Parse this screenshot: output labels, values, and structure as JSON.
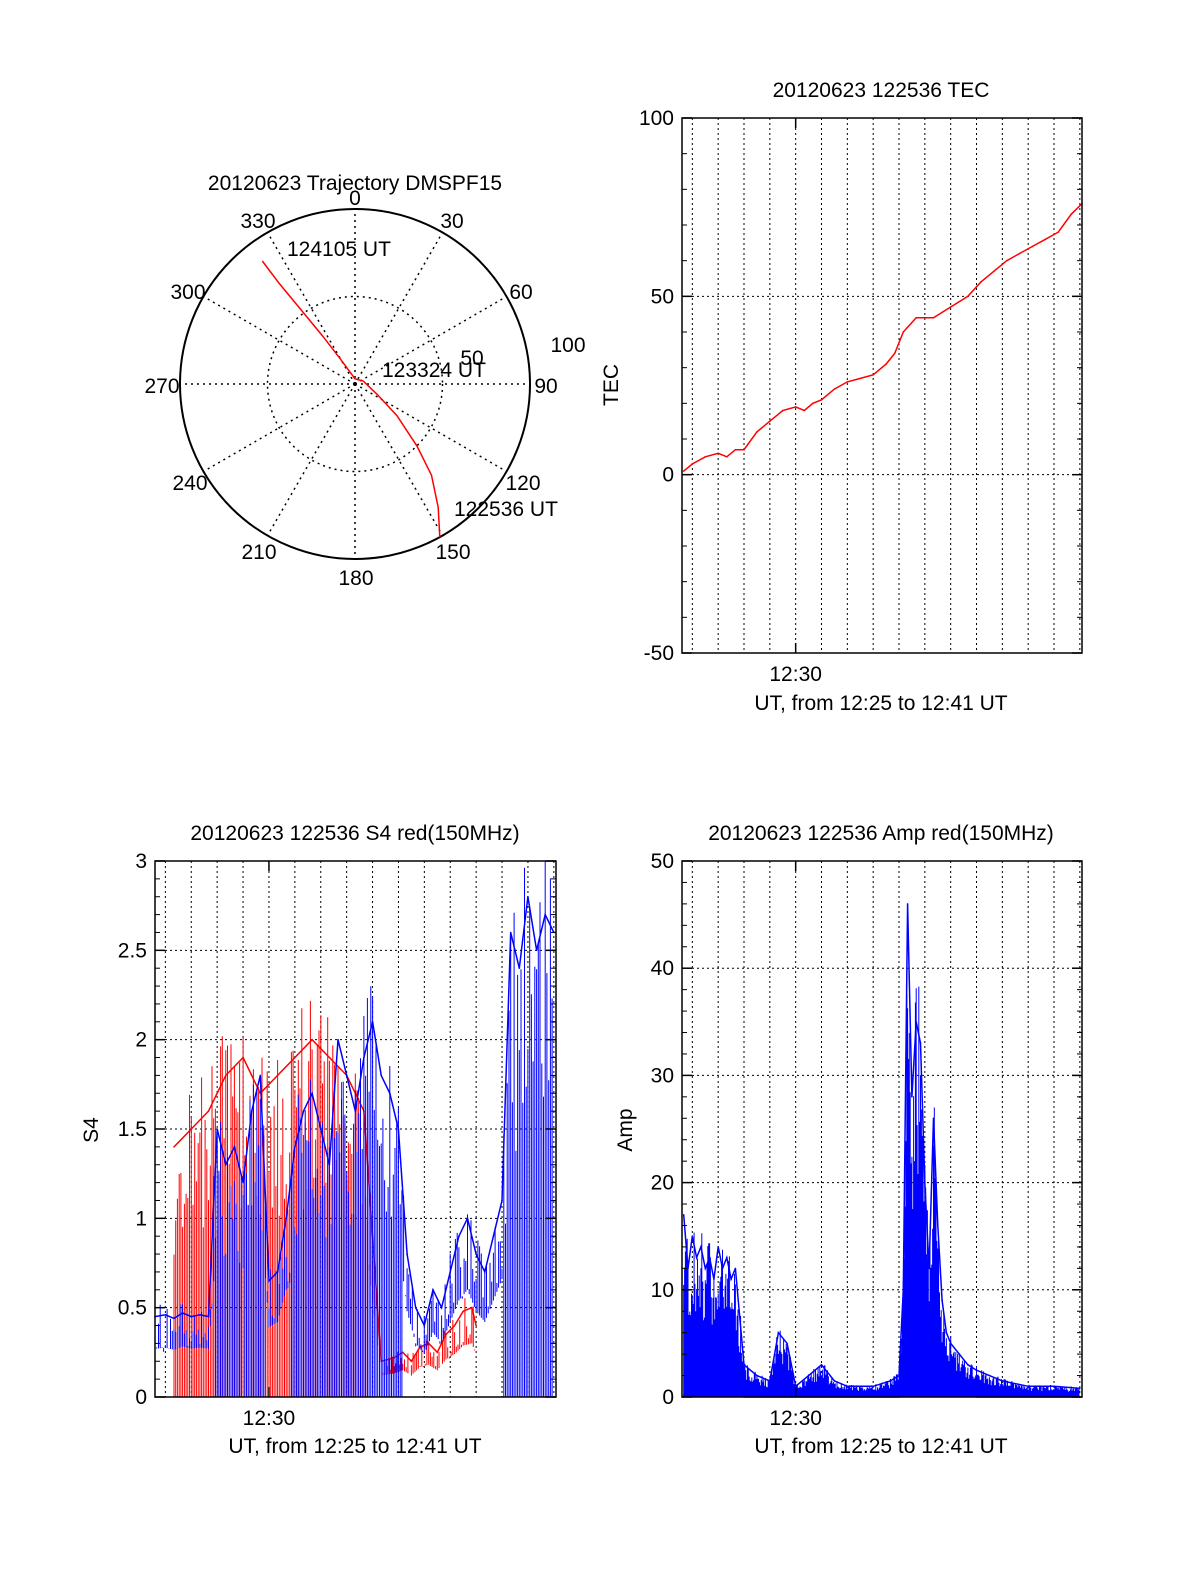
{
  "chart_data": [
    {
      "type": "polar",
      "title": "20120623 Trajectory DMSPF15",
      "angle_labels": [
        "0",
        "30",
        "60",
        "90",
        "120",
        "150",
        "180",
        "210",
        "240",
        "270",
        "300",
        "330"
      ],
      "radius_labels": [
        "50",
        "100"
      ],
      "rlim": [
        0,
        100
      ],
      "grid": true,
      "series": [
        {
          "color": "#ff0000",
          "points": [
            {
              "az": 151,
              "r": 100
            },
            {
              "az": 146,
              "r": 85
            },
            {
              "az": 140,
              "r": 68
            },
            {
              "az": 135,
              "r": 50
            },
            {
              "az": 127,
              "r": 30
            },
            {
              "az": 115,
              "r": 14
            },
            {
              "az": 70,
              "r": 5
            },
            {
              "az": 0,
              "r": 3
            },
            {
              "az": 330,
              "r": 16
            },
            {
              "az": 326,
              "r": 33
            },
            {
              "az": 324,
              "r": 52
            },
            {
              "az": 323,
              "r": 72
            },
            {
              "az": 323,
              "r": 88
            }
          ]
        }
      ],
      "annotations": [
        {
          "text": "124105 UT",
          "az": 329,
          "r": 88
        },
        {
          "text": "123324 UT",
          "az": 74,
          "r": 28
        },
        {
          "text": "122536 UT",
          "az": 152,
          "r": 88
        }
      ]
    },
    {
      "type": "line",
      "title": "20120623 122536 TEC",
      "xlabel": "UT, from 12:25 to 12:41 UT",
      "ylabel": "TEC",
      "xlim": [
        "12:25:36",
        "12:41:05"
      ],
      "ylim": [
        -50,
        100
      ],
      "yticks": [
        "-50",
        "0",
        "50",
        "100"
      ],
      "xticks": [
        {
          "t": "12:30:00",
          "label": "12:30"
        }
      ],
      "grid": true,
      "series": [
        {
          "color": "#ff0000",
          "x": [
            "12:25:40",
            "12:26:00",
            "12:26:30",
            "12:27:00",
            "12:27:20",
            "12:27:40",
            "12:28:00",
            "12:28:30",
            "12:29:00",
            "12:29:30",
            "12:30:00",
            "12:30:20",
            "12:30:40",
            "12:31:00",
            "12:31:30",
            "12:32:00",
            "12:32:30",
            "12:33:00",
            "12:33:30",
            "12:33:50",
            "12:34:10",
            "12:34:40",
            "12:35:20",
            "12:36:00",
            "12:36:40",
            "12:37:10",
            "12:37:40",
            "12:38:10",
            "12:38:40",
            "12:39:10",
            "12:39:40",
            "12:40:10",
            "12:40:40",
            "12:41:05"
          ],
          "values": [
            1,
            3,
            5,
            6,
            5,
            7,
            7,
            12,
            15,
            18,
            19,
            18,
            20,
            21,
            24,
            26,
            27,
            28,
            31,
            34,
            40,
            44,
            44,
            47,
            50,
            54,
            57,
            60,
            62,
            64,
            66,
            68,
            73,
            76
          ]
        }
      ]
    },
    {
      "type": "line",
      "title": "20120623 122536 S4 red(150MHz)",
      "xlabel": "UT, from 12:25 to 12:41 UT",
      "ylabel": "S4",
      "xlim": [
        "12:25:36",
        "12:41:05"
      ],
      "ylim": [
        0,
        3
      ],
      "yticks": [
        "0",
        "0.5",
        "1",
        "1.5",
        "2",
        "2.5",
        "3"
      ],
      "xticks": [
        {
          "t": "12:30:00",
          "label": "12:30"
        }
      ],
      "grid": true,
      "series": [
        {
          "color": "#ff0000",
          "x": [
            "12:26:20",
            "12:27:00",
            "12:27:40",
            "12:28:20",
            "12:29:00",
            "12:29:40",
            "12:30:20",
            "12:31:00",
            "12:31:40",
            "12:32:20",
            "12:33:00",
            "12:33:40",
            "12:34:20",
            "12:34:50",
            "12:35:10",
            "12:35:30",
            "12:35:50",
            "12:36:10",
            "12:36:30",
            "12:36:50",
            "12:37:10",
            "12:37:30",
            "12:37:50",
            "12:38:00"
          ],
          "values": [
            1.4,
            1.5,
            1.6,
            1.8,
            1.9,
            1.7,
            1.8,
            1.9,
            2.0,
            1.9,
            1.8,
            1.6,
            0.2,
            0.22,
            0.25,
            0.2,
            0.28,
            0.3,
            0.25,
            0.35,
            0.4,
            0.48,
            0.5,
            0.4
          ]
        },
        {
          "color": "#0000ff",
          "x": [
            "12:25:36",
            "12:26:00",
            "12:26:20",
            "12:26:40",
            "12:27:00",
            "12:27:20",
            "12:27:40",
            "12:28:00",
            "12:28:20",
            "12:28:40",
            "12:29:00",
            "12:29:20",
            "12:29:40",
            "12:30:00",
            "12:30:20",
            "12:30:40",
            "12:31:00",
            "12:31:20",
            "12:31:40",
            "12:32:00",
            "12:32:20",
            "12:32:40",
            "12:33:00",
            "12:33:20",
            "12:33:40",
            "12:34:00",
            "12:34:20",
            "12:34:40",
            "12:35:00",
            "12:35:20",
            "12:35:40",
            "12:36:00",
            "12:36:20",
            "12:36:40",
            "12:37:00",
            "12:37:20",
            "12:37:40",
            "12:38:00",
            "12:38:20",
            "12:38:40",
            "12:39:00",
            "12:39:20",
            "12:39:40",
            "12:40:00",
            "12:40:20",
            "12:40:40",
            "12:41:00"
          ],
          "values": [
            0.45,
            0.46,
            0.44,
            0.47,
            0.45,
            0.46,
            0.45,
            1.5,
            1.3,
            1.4,
            1.2,
            1.6,
            1.8,
            0.65,
            0.7,
            1.0,
            1.4,
            1.6,
            1.7,
            1.5,
            1.3,
            2.0,
            1.8,
            1.6,
            1.9,
            2.1,
            1.8,
            1.7,
            1.5,
            0.8,
            0.5,
            0.4,
            0.6,
            0.5,
            0.7,
            0.9,
            1.0,
            0.8,
            0.7,
            0.9,
            1.1,
            2.6,
            2.4,
            2.8,
            2.5,
            2.7,
            2.6
          ]
        }
      ]
    },
    {
      "type": "line",
      "title": "20120623 122536 Amp red(150MHz)",
      "xlabel": "UT, from 12:25 to 12:41 UT",
      "ylabel": "Amp",
      "xlim": [
        "12:25:36",
        "12:41:05"
      ],
      "ylim": [
        0,
        50
      ],
      "yticks": [
        "0",
        "10",
        "20",
        "30",
        "40",
        "50"
      ],
      "xticks": [
        {
          "t": "12:30:00",
          "label": "12:30"
        }
      ],
      "grid": true,
      "series": [
        {
          "color": "#ff0000",
          "x": [
            "12:25:40",
            "12:27:40",
            "12:28:00",
            "12:34:00",
            "12:34:20",
            "12:34:40",
            "12:35:00",
            "12:35:10",
            "12:35:20",
            "12:35:40",
            "12:36:00",
            "12:36:20",
            "12:37:00",
            "12:41:00"
          ],
          "values": [
            0.2,
            0.2,
            0,
            0,
            0.5,
            8,
            6,
            3,
            5,
            4,
            1,
            0.3,
            0,
            0
          ]
        },
        {
          "color": "#0000ff",
          "x": [
            "12:25:40",
            "12:25:50",
            "12:26:00",
            "12:26:10",
            "12:26:20",
            "12:26:30",
            "12:26:40",
            "12:26:50",
            "12:27:00",
            "12:27:10",
            "12:27:20",
            "12:27:30",
            "12:27:40",
            "12:28:00",
            "12:28:30",
            "12:29:00",
            "12:29:20",
            "12:29:40",
            "12:30:00",
            "12:30:30",
            "12:31:00",
            "12:31:30",
            "12:32:00",
            "12:33:00",
            "12:33:40",
            "12:34:00",
            "12:34:10",
            "12:34:20",
            "12:34:30",
            "12:34:40",
            "12:34:50",
            "12:35:00",
            "12:35:10",
            "12:35:20",
            "12:35:30",
            "12:35:40",
            "12:35:50",
            "12:36:00",
            "12:36:20",
            "12:36:40",
            "12:37:00",
            "12:37:30",
            "12:38:00",
            "12:39:00",
            "12:40:00",
            "12:41:00"
          ],
          "values": [
            17,
            12,
            15,
            13,
            14,
            12,
            13,
            11,
            14,
            12,
            13,
            11,
            12,
            3,
            2,
            1.5,
            6,
            5,
            1,
            2,
            3,
            1.5,
            1,
            1,
            1.5,
            2,
            10,
            46,
            28,
            35,
            33,
            20,
            12,
            26,
            16,
            9,
            6,
            5,
            4,
            3,
            2.5,
            2,
            1.5,
            1,
            1,
            0.8
          ]
        }
      ]
    }
  ]
}
